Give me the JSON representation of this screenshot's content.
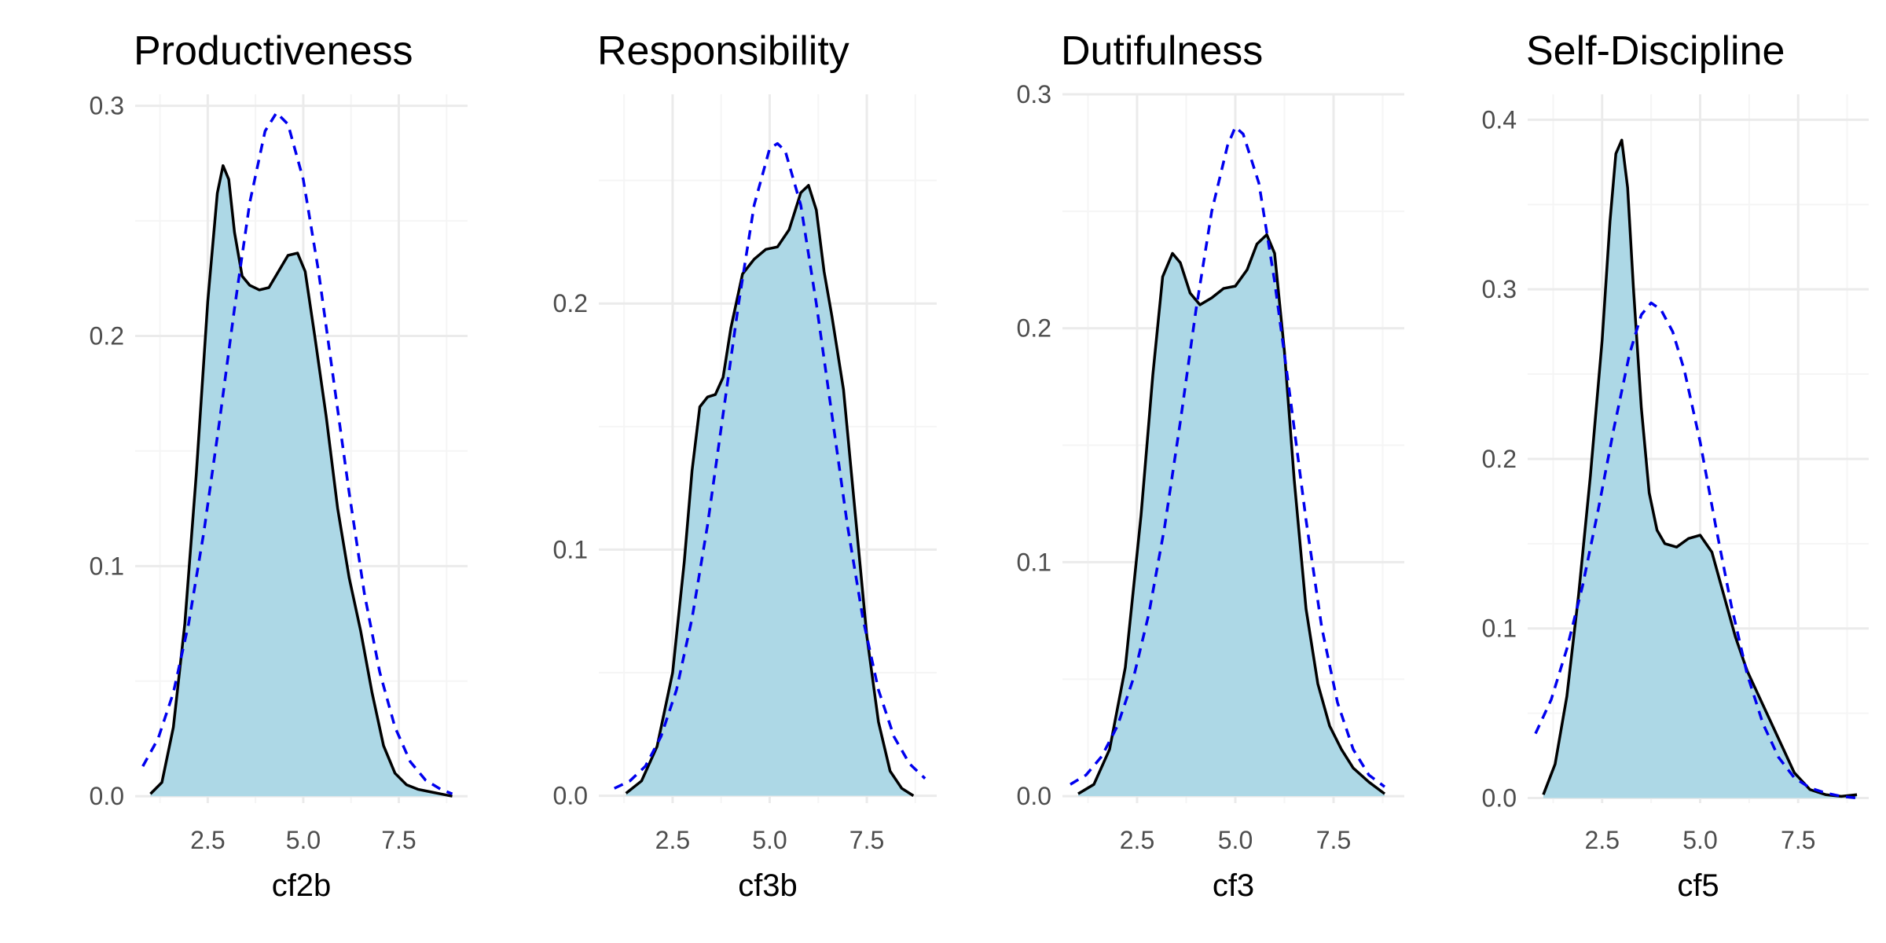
{
  "figure": {
    "background": "#ffffff"
  },
  "style": {
    "fill_color": "#add8e6",
    "density_line_color": "#000000",
    "normal_line_color": "#0000ee",
    "grid_major_color": "#ebebeb",
    "grid_minor_color": "#f5f5f5"
  },
  "chart_data": [
    {
      "type": "area",
      "title": "Productiveness",
      "xlabel": "cf2b",
      "ylabel": "",
      "xlim": [
        0.6,
        9.3
      ],
      "ylim": [
        -0.003,
        0.305
      ],
      "x_ticks": [
        2.5,
        5.0,
        7.5
      ],
      "x_tick_labels": [
        "2.5",
        "5.0",
        "7.5"
      ],
      "y_ticks": [
        0.0,
        0.1,
        0.2,
        0.3
      ],
      "y_tick_labels": [
        "0.0",
        "0.1",
        "0.2",
        "0.3"
      ],
      "grid": true,
      "legend": "none",
      "series": [
        {
          "role": "kernel-density",
          "style": "solid-filled",
          "x": [
            1.0,
            1.3,
            1.6,
            1.9,
            2.2,
            2.5,
            2.75,
            2.9,
            3.05,
            3.2,
            3.4,
            3.6,
            3.85,
            4.1,
            4.35,
            4.6,
            4.85,
            5.05,
            5.3,
            5.6,
            5.9,
            6.2,
            6.5,
            6.8,
            7.1,
            7.4,
            7.7,
            8.0,
            8.3,
            8.6,
            8.9
          ],
          "y": [
            0.001,
            0.006,
            0.03,
            0.075,
            0.14,
            0.215,
            0.262,
            0.274,
            0.268,
            0.245,
            0.226,
            0.222,
            0.22,
            0.221,
            0.228,
            0.235,
            0.236,
            0.228,
            0.2,
            0.165,
            0.125,
            0.095,
            0.072,
            0.045,
            0.022,
            0.01,
            0.005,
            0.003,
            0.002,
            0.001,
            0.0
          ]
        },
        {
          "role": "normal-reference",
          "style": "dashed",
          "x": [
            0.8,
            1.2,
            1.6,
            2.0,
            2.4,
            2.8,
            3.2,
            3.6,
            4.0,
            4.3,
            4.6,
            5.0,
            5.4,
            5.8,
            6.2,
            6.6,
            7.0,
            7.4,
            7.8,
            8.2,
            8.6,
            8.9
          ],
          "y": [
            0.013,
            0.025,
            0.045,
            0.075,
            0.115,
            0.162,
            0.212,
            0.258,
            0.289,
            0.297,
            0.292,
            0.268,
            0.228,
            0.18,
            0.132,
            0.088,
            0.054,
            0.03,
            0.015,
            0.007,
            0.003,
            0.001
          ]
        }
      ]
    },
    {
      "type": "area",
      "title": "Responsibility",
      "xlabel": "cf3b",
      "ylabel": "",
      "xlim": [
        0.6,
        9.3
      ],
      "ylim": [
        -0.003,
        0.285
      ],
      "x_ticks": [
        2.5,
        5.0,
        7.5
      ],
      "x_tick_labels": [
        "2.5",
        "5.0",
        "7.5"
      ],
      "y_ticks": [
        0.0,
        0.1,
        0.2
      ],
      "y_tick_labels": [
        "0.0",
        "0.1",
        "0.2"
      ],
      "grid": true,
      "legend": "none",
      "series": [
        {
          "role": "kernel-density",
          "style": "solid-filled",
          "x": [
            1.3,
            1.7,
            2.1,
            2.5,
            2.8,
            3.0,
            3.2,
            3.4,
            3.6,
            3.8,
            4.0,
            4.3,
            4.6,
            4.9,
            5.2,
            5.5,
            5.8,
            6.0,
            6.2,
            6.4,
            6.6,
            6.9,
            7.2,
            7.5,
            7.8,
            8.1,
            8.4,
            8.7
          ],
          "y": [
            0.001,
            0.006,
            0.02,
            0.05,
            0.095,
            0.132,
            0.158,
            0.162,
            0.163,
            0.17,
            0.19,
            0.212,
            0.218,
            0.222,
            0.223,
            0.23,
            0.245,
            0.248,
            0.238,
            0.213,
            0.195,
            0.165,
            0.115,
            0.065,
            0.03,
            0.01,
            0.003,
            0.0
          ]
        },
        {
          "role": "normal-reference",
          "style": "dashed",
          "x": [
            1.0,
            1.4,
            1.8,
            2.2,
            2.6,
            3.0,
            3.4,
            3.8,
            4.2,
            4.6,
            5.0,
            5.2,
            5.4,
            5.8,
            6.2,
            6.6,
            7.0,
            7.4,
            7.8,
            8.2,
            8.6,
            9.0
          ],
          "y": [
            0.003,
            0.006,
            0.012,
            0.024,
            0.043,
            0.072,
            0.11,
            0.155,
            0.2,
            0.24,
            0.263,
            0.265,
            0.262,
            0.24,
            0.2,
            0.155,
            0.11,
            0.072,
            0.043,
            0.024,
            0.013,
            0.007
          ]
        }
      ]
    },
    {
      "type": "area",
      "title": "Dutifulness",
      "xlabel": "cf3",
      "ylabel": "",
      "xlim": [
        0.6,
        9.3
      ],
      "ylim": [
        -0.003,
        0.3
      ],
      "x_ticks": [
        2.5,
        5.0,
        7.5
      ],
      "x_tick_labels": [
        "2.5",
        "5.0",
        "7.5"
      ],
      "y_ticks": [
        0.0,
        0.1,
        0.2,
        0.3
      ],
      "y_tick_labels": [
        "0.0",
        "0.1",
        "0.2",
        "0.3"
      ],
      "grid": true,
      "legend": "none",
      "series": [
        {
          "role": "kernel-density",
          "style": "solid-filled",
          "x": [
            1.0,
            1.4,
            1.8,
            2.2,
            2.6,
            2.9,
            3.15,
            3.4,
            3.6,
            3.85,
            4.1,
            4.4,
            4.7,
            5.0,
            5.3,
            5.55,
            5.8,
            6.0,
            6.25,
            6.5,
            6.8,
            7.1,
            7.4,
            7.7,
            8.0,
            8.4,
            8.8
          ],
          "y": [
            0.001,
            0.005,
            0.02,
            0.055,
            0.12,
            0.18,
            0.222,
            0.232,
            0.228,
            0.215,
            0.21,
            0.213,
            0.217,
            0.218,
            0.225,
            0.236,
            0.24,
            0.232,
            0.19,
            0.135,
            0.08,
            0.048,
            0.03,
            0.02,
            0.012,
            0.006,
            0.001
          ]
        },
        {
          "role": "normal-reference",
          "style": "dashed",
          "x": [
            0.8,
            1.2,
            1.6,
            2.0,
            2.4,
            2.8,
            3.2,
            3.6,
            4.0,
            4.4,
            4.8,
            5.0,
            5.2,
            5.6,
            6.0,
            6.4,
            6.8,
            7.2,
            7.6,
            8.0,
            8.4,
            8.8
          ],
          "y": [
            0.005,
            0.009,
            0.017,
            0.03,
            0.05,
            0.078,
            0.115,
            0.16,
            0.208,
            0.25,
            0.278,
            0.286,
            0.283,
            0.262,
            0.22,
            0.17,
            0.118,
            0.072,
            0.04,
            0.02,
            0.009,
            0.004
          ]
        }
      ]
    },
    {
      "type": "area",
      "title": "Self-Discipline",
      "xlabel": "cf5",
      "ylabel": "",
      "xlim": [
        0.6,
        9.3
      ],
      "ylim": [
        -0.003,
        0.415
      ],
      "x_ticks": [
        2.5,
        5.0,
        7.5
      ],
      "x_tick_labels": [
        "2.5",
        "5.0",
        "7.5"
      ],
      "y_ticks": [
        0.0,
        0.1,
        0.2,
        0.3,
        0.4
      ],
      "y_tick_labels": [
        "0.0",
        "0.1",
        "0.2",
        "0.3",
        "0.4"
      ],
      "grid": true,
      "legend": "none",
      "series": [
        {
          "role": "kernel-density",
          "style": "solid-filled",
          "x": [
            1.0,
            1.3,
            1.6,
            1.9,
            2.2,
            2.5,
            2.7,
            2.85,
            3.0,
            3.15,
            3.3,
            3.5,
            3.7,
            3.9,
            4.1,
            4.4,
            4.7,
            5.0,
            5.3,
            5.6,
            5.9,
            6.2,
            6.5,
            6.8,
            7.1,
            7.4,
            7.8,
            8.2,
            8.6,
            9.0
          ],
          "y": [
            0.002,
            0.02,
            0.06,
            0.12,
            0.19,
            0.27,
            0.34,
            0.38,
            0.388,
            0.36,
            0.3,
            0.23,
            0.18,
            0.158,
            0.15,
            0.148,
            0.153,
            0.155,
            0.145,
            0.12,
            0.095,
            0.075,
            0.06,
            0.045,
            0.03,
            0.015,
            0.005,
            0.002,
            0.001,
            0.002
          ]
        },
        {
          "role": "normal-reference",
          "style": "dashed",
          "x": [
            0.8,
            1.2,
            1.6,
            2.0,
            2.4,
            2.8,
            3.2,
            3.5,
            3.75,
            4.0,
            4.3,
            4.6,
            5.0,
            5.4,
            5.8,
            6.2,
            6.6,
            7.0,
            7.4,
            7.8,
            8.2,
            8.6,
            9.0
          ],
          "y": [
            0.038,
            0.058,
            0.088,
            0.125,
            0.17,
            0.218,
            0.262,
            0.285,
            0.292,
            0.288,
            0.275,
            0.252,
            0.21,
            0.16,
            0.113,
            0.073,
            0.044,
            0.024,
            0.012,
            0.006,
            0.003,
            0.001,
            0.0
          ]
        }
      ]
    }
  ]
}
